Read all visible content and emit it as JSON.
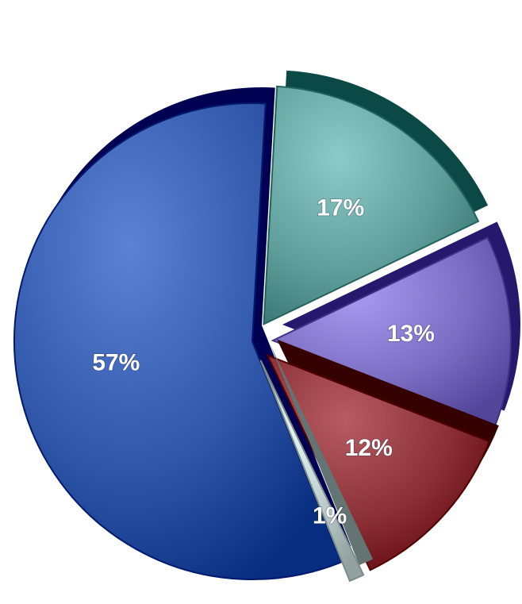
{
  "chart_data": {
    "type": "pie",
    "style": "3d-exploded",
    "slices": [
      {
        "label": "57%",
        "value": 57,
        "color": "#2f55a8",
        "exploded": false
      },
      {
        "label": "17%",
        "value": 17,
        "color": "#5f9e9a",
        "exploded": true
      },
      {
        "label": "13%",
        "value": 13,
        "color": "#7a6dc2",
        "exploded": true
      },
      {
        "label": "12%",
        "value": 12,
        "color": "#8a2f36",
        "exploded": true
      },
      {
        "label": "1%",
        "value": 1,
        "color": "#b9c9c7",
        "exploded": true
      }
    ],
    "legend": "none"
  }
}
